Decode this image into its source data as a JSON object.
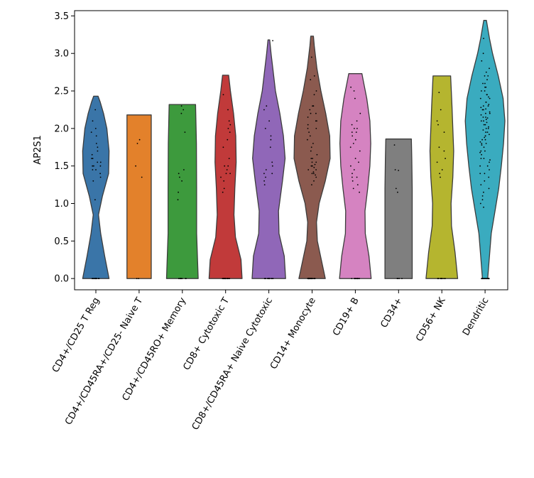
{
  "chart_data": {
    "type": "violin",
    "title": "",
    "xlabel": "",
    "ylabel": "AP2S1",
    "ylim": [
      -0.15,
      3.57
    ],
    "yticks": [
      0.0,
      0.5,
      1.0,
      1.5,
      2.0,
      2.5,
      3.0,
      3.5
    ],
    "ytick_labels": [
      "0.0",
      "0.5",
      "1.0",
      "1.5",
      "2.0",
      "2.5",
      "3.0",
      "3.5"
    ],
    "grid": false,
    "legend": "none",
    "categories": [
      "CD4+/CD25 T Reg",
      "CD4+/CD45RA+/CD25- Naive T",
      "CD4+/CD45RO+ Memory",
      "CD8+ Cytotoxic T",
      "CD8+/CD45RA+ Naive Cytotoxic",
      "CD14+ Monocyte",
      "CD19+ B",
      "CD34+",
      "CD56+ NK",
      "Dendritic"
    ],
    "colors": [
      "#3a75a8",
      "#e3812b",
      "#3d9a3d",
      "#c13a3a",
      "#9067b8",
      "#8b5a4f",
      "#d583c1",
      "#7f7f7f",
      "#b5b52f",
      "#3aabbf"
    ],
    "violins": [
      {
        "name": "CD4+/CD25 T Reg",
        "max": 2.43,
        "profile": [
          [
            0.0,
            0.6
          ],
          [
            0.3,
            0.4
          ],
          [
            0.6,
            0.22
          ],
          [
            0.85,
            0.12
          ],
          [
            1.1,
            0.3
          ],
          [
            1.4,
            0.58
          ],
          [
            1.7,
            0.6
          ],
          [
            2.0,
            0.5
          ],
          [
            2.2,
            0.35
          ],
          [
            2.35,
            0.2
          ],
          [
            2.43,
            0.1
          ]
        ]
      },
      {
        "name": "CD4+/CD45RA+/CD25- Naive T",
        "max": 2.18,
        "profile": [
          [
            0.0,
            0.55
          ],
          [
            1.0,
            0.55
          ],
          [
            2.18,
            0.55
          ]
        ]
      },
      {
        "name": "CD4+/CD45RO+ Memory",
        "max": 2.32,
        "profile": [
          [
            0.0,
            0.72
          ],
          [
            0.6,
            0.65
          ],
          [
            1.2,
            0.65
          ],
          [
            1.8,
            0.64
          ],
          [
            2.32,
            0.6
          ]
        ]
      },
      {
        "name": "CD8+ Cytotoxic T",
        "max": 2.71,
        "profile": [
          [
            0.0,
            0.75
          ],
          [
            0.25,
            0.7
          ],
          [
            0.55,
            0.45
          ],
          [
            0.85,
            0.38
          ],
          [
            1.2,
            0.42
          ],
          [
            1.55,
            0.48
          ],
          [
            1.9,
            0.46
          ],
          [
            2.2,
            0.36
          ],
          [
            2.5,
            0.22
          ],
          [
            2.71,
            0.14
          ]
        ]
      },
      {
        "name": "CD8+/CD45RA+ Naive Cytotoxic",
        "max": 3.18,
        "profile": [
          [
            0.0,
            0.76
          ],
          [
            0.3,
            0.7
          ],
          [
            0.6,
            0.46
          ],
          [
            0.9,
            0.44
          ],
          [
            1.3,
            0.62
          ],
          [
            1.6,
            0.74
          ],
          [
            1.9,
            0.66
          ],
          [
            2.2,
            0.5
          ],
          [
            2.5,
            0.3
          ],
          [
            2.8,
            0.18
          ],
          [
            3.0,
            0.1
          ],
          [
            3.18,
            0.04
          ]
        ]
      },
      {
        "name": "CD14+ Monocyte",
        "max": 3.23,
        "profile": [
          [
            0.0,
            0.6
          ],
          [
            0.25,
            0.42
          ],
          [
            0.5,
            0.24
          ],
          [
            0.75,
            0.2
          ],
          [
            1.0,
            0.32
          ],
          [
            1.3,
            0.6
          ],
          [
            1.6,
            0.82
          ],
          [
            1.9,
            0.8
          ],
          [
            2.2,
            0.62
          ],
          [
            2.5,
            0.4
          ],
          [
            2.8,
            0.22
          ],
          [
            3.1,
            0.1
          ],
          [
            3.23,
            0.06
          ]
        ]
      },
      {
        "name": "CD19+ B",
        "max": 2.73,
        "profile": [
          [
            0.0,
            0.72
          ],
          [
            0.3,
            0.62
          ],
          [
            0.6,
            0.45
          ],
          [
            0.9,
            0.44
          ],
          [
            1.2,
            0.56
          ],
          [
            1.5,
            0.66
          ],
          [
            1.8,
            0.7
          ],
          [
            2.1,
            0.66
          ],
          [
            2.4,
            0.52
          ],
          [
            2.65,
            0.35
          ],
          [
            2.73,
            0.3
          ]
        ]
      },
      {
        "name": "CD34+",
        "max": 1.86,
        "profile": [
          [
            0.0,
            0.62
          ],
          [
            0.4,
            0.62
          ],
          [
            0.8,
            0.62
          ],
          [
            1.2,
            0.62
          ],
          [
            1.6,
            0.6
          ],
          [
            1.86,
            0.58
          ]
        ]
      },
      {
        "name": "CD56+ NK",
        "max": 2.7,
        "profile": [
          [
            0.0,
            0.72
          ],
          [
            0.35,
            0.6
          ],
          [
            0.7,
            0.44
          ],
          [
            1.0,
            0.42
          ],
          [
            1.35,
            0.5
          ],
          [
            1.7,
            0.54
          ],
          [
            2.0,
            0.5
          ],
          [
            2.3,
            0.46
          ],
          [
            2.7,
            0.4
          ]
        ]
      },
      {
        "name": "Dendritic",
        "max": 3.44,
        "profile": [
          [
            0.0,
            0.12
          ],
          [
            0.3,
            0.2
          ],
          [
            0.6,
            0.28
          ],
          [
            0.9,
            0.45
          ],
          [
            1.2,
            0.62
          ],
          [
            1.5,
            0.74
          ],
          [
            1.8,
            0.84
          ],
          [
            2.1,
            0.9
          ],
          [
            2.4,
            0.82
          ],
          [
            2.7,
            0.6
          ],
          [
            3.0,
            0.34
          ],
          [
            3.2,
            0.2
          ],
          [
            3.44,
            0.06
          ]
        ]
      }
    ],
    "points": [
      {
        "name": "CD4+/CD25 T Reg",
        "zeros": 12,
        "values": [
          1.55,
          1.6,
          1.45,
          1.3,
          1.7,
          1.5,
          1.8,
          2.0,
          2.1,
          1.95,
          1.4,
          1.35,
          1.65,
          2.25,
          1.5,
          1.6,
          1.05,
          1.9,
          1.75,
          1.5,
          1.45,
          1.55
        ]
      },
      {
        "name": "CD4+/CD45RA+/CD25- Naive T",
        "zeros": 2,
        "values": [
          1.85,
          1.8,
          1.5,
          1.35
        ]
      },
      {
        "name": "CD4+/CD45RO+ Memory",
        "zeros": 8,
        "values": [
          2.25,
          2.2,
          1.95,
          1.45,
          1.4,
          1.35,
          1.3,
          1.15,
          1.05,
          2.3
        ]
      },
      {
        "name": "CD8+ Cytotoxic T",
        "zeros": 14,
        "values": [
          2.45,
          2.0,
          2.1,
          2.05,
          1.95,
          1.6,
          1.5,
          1.45,
          1.4,
          1.35,
          1.3,
          1.2,
          1.15,
          1.5,
          1.85,
          2.25,
          1.75,
          1.4
        ]
      },
      {
        "name": "CD8+/CD45RA+ Naive Cytotoxic",
        "zeros": 12,
        "values": [
          3.17,
          2.3,
          2.25,
          2.0,
          1.9,
          1.85,
          1.75,
          1.5,
          1.45,
          1.4,
          1.35,
          1.3,
          1.25,
          1.4,
          2.1,
          1.55
        ]
      },
      {
        "name": "CD14+ Monocyte",
        "zeros": 22,
        "values": [
          2.95,
          2.7,
          2.65,
          2.5,
          2.45,
          2.3,
          2.25,
          2.2,
          2.15,
          2.1,
          2.05,
          2.0,
          1.95,
          1.9,
          1.85,
          1.8,
          1.75,
          1.7,
          1.6,
          1.55,
          1.5,
          1.5,
          1.45,
          1.45,
          1.4,
          1.4,
          1.35,
          1.3,
          1.25,
          2.1,
          2.2,
          1.6,
          1.55,
          1.48,
          1.52,
          2.0,
          2.3,
          1.65,
          1.42,
          1.38
        ]
      },
      {
        "name": "CD19+ B",
        "zeros": 12,
        "values": [
          2.55,
          2.5,
          2.4,
          2.2,
          2.1,
          2.05,
          2.0,
          1.95,
          1.9,
          1.85,
          1.8,
          1.75,
          1.7,
          1.6,
          1.5,
          1.45,
          1.4,
          1.35,
          1.3,
          1.25,
          1.2,
          1.15,
          1.95,
          2.0,
          1.55,
          1.35
        ]
      },
      {
        "name": "CD34+",
        "zeros": 4,
        "values": [
          1.78,
          1.45,
          1.44,
          1.2,
          1.15
        ]
      },
      {
        "name": "CD56+ NK",
        "zeros": 10,
        "values": [
          2.48,
          2.25,
          2.1,
          2.05,
          1.7,
          1.6,
          1.55,
          1.45,
          1.4,
          1.35,
          1.75,
          1.95
        ]
      },
      {
        "name": "Dendritic",
        "zeros": 16,
        "values": [
          3.2,
          3.0,
          2.9,
          2.8,
          2.75,
          2.7,
          2.65,
          2.6,
          2.55,
          2.5,
          2.45,
          2.4,
          2.35,
          2.3,
          2.25,
          2.2,
          2.15,
          2.1,
          2.05,
          2.0,
          1.95,
          1.9,
          1.85,
          1.8,
          1.75,
          1.7,
          1.65,
          1.6,
          1.55,
          1.5,
          1.45,
          1.4,
          1.35,
          1.3,
          1.25,
          1.2,
          1.15,
          1.1,
          1.05,
          1.0,
          0.95,
          2.1,
          2.2,
          2.3,
          2.0,
          1.9,
          2.4,
          2.5,
          1.8,
          1.7,
          2.15,
          2.25,
          2.05,
          1.95,
          1.85,
          2.35,
          2.45,
          2.55,
          1.6,
          1.5,
          2.6,
          2.7,
          1.4,
          2.12,
          2.18,
          2.28,
          1.98,
          1.88,
          2.08,
          2.22,
          2.32,
          1.78,
          1.68,
          2.42,
          1.58,
          2.02,
          2.14,
          2.26,
          1.92,
          1.82
        ]
      }
    ]
  }
}
